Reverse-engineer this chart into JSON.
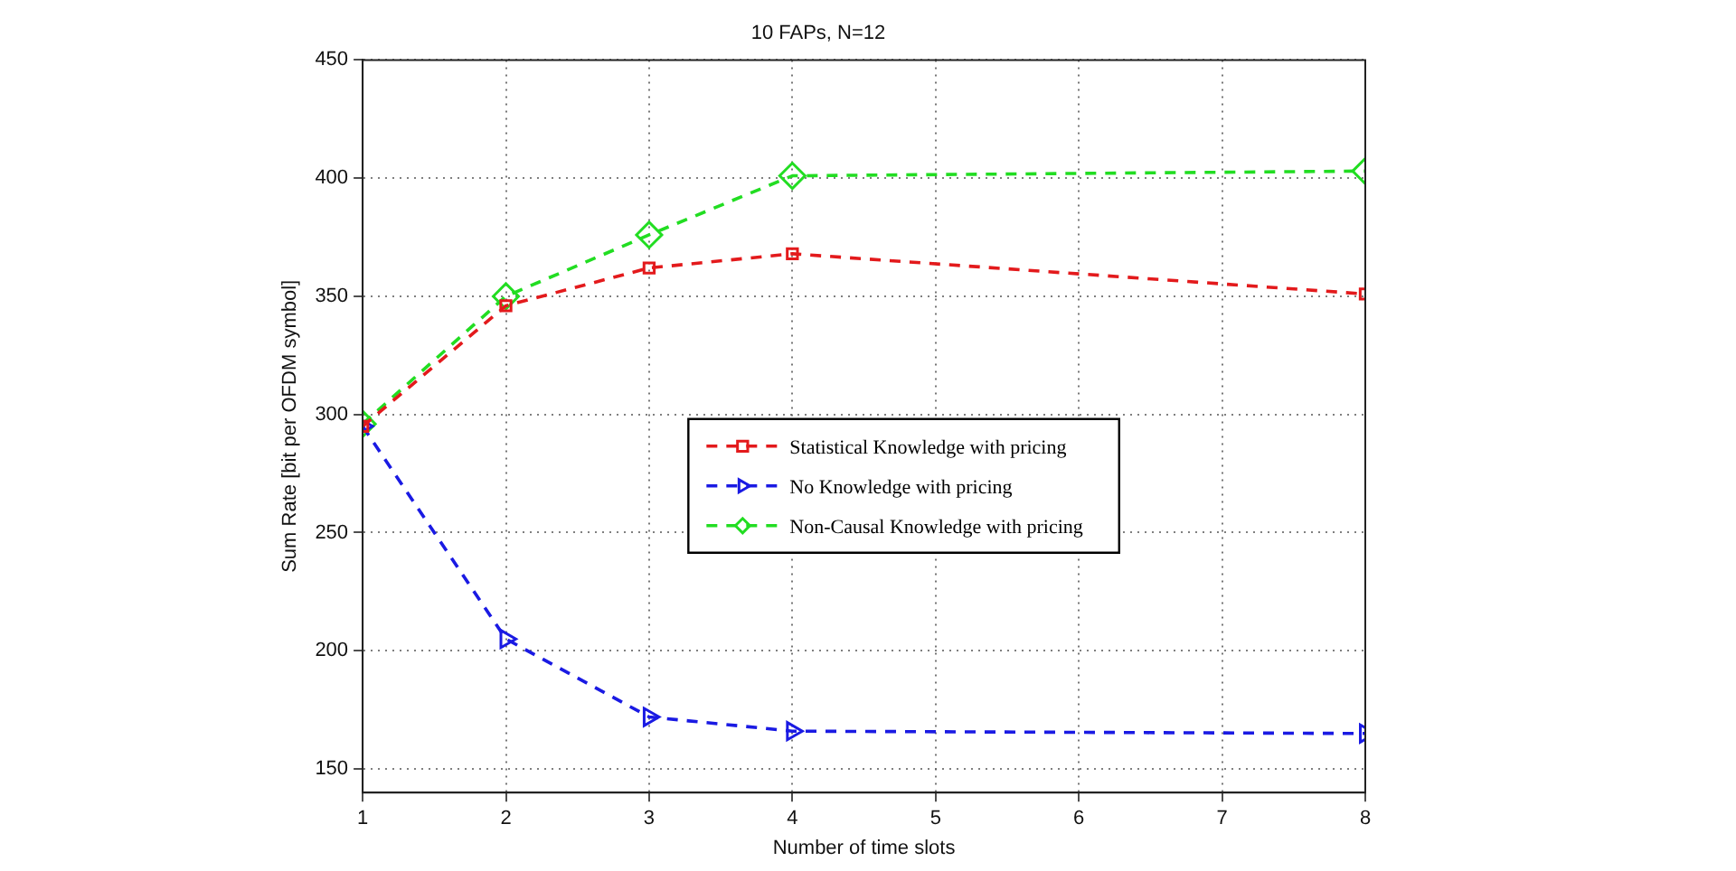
{
  "chart_data": {
    "type": "line",
    "title": "10 FAPs, N=12",
    "xlabel": "Number of time slots",
    "ylabel": "Sum Rate [bit per OFDM symbol]",
    "x": [
      1,
      2,
      3,
      4,
      8
    ],
    "series": [
      {
        "name": "Statistical Knowledge with pricing",
        "color": "#e31a1c",
        "marker": "square",
        "values": [
          295,
          346,
          362,
          368,
          351
        ]
      },
      {
        "name": "No Knowledge with pricing",
        "color": "#1a1ae3",
        "marker": "triangle",
        "values": [
          295,
          205,
          172,
          166,
          165
        ]
      },
      {
        "name": "Non-Causal Knowledge with pricing",
        "color": "#22dd22",
        "marker": "diamond",
        "values": [
          296,
          350,
          376,
          401,
          403
        ]
      }
    ],
    "xlim": [
      1,
      8
    ],
    "xticks": [
      1,
      2,
      3,
      4,
      5,
      6,
      7,
      8
    ],
    "ylim": [
      140,
      450
    ],
    "yticks": [
      150,
      200,
      250,
      300,
      350,
      400,
      450
    ],
    "grid": true,
    "legend": "center",
    "line_style": "dashed"
  }
}
